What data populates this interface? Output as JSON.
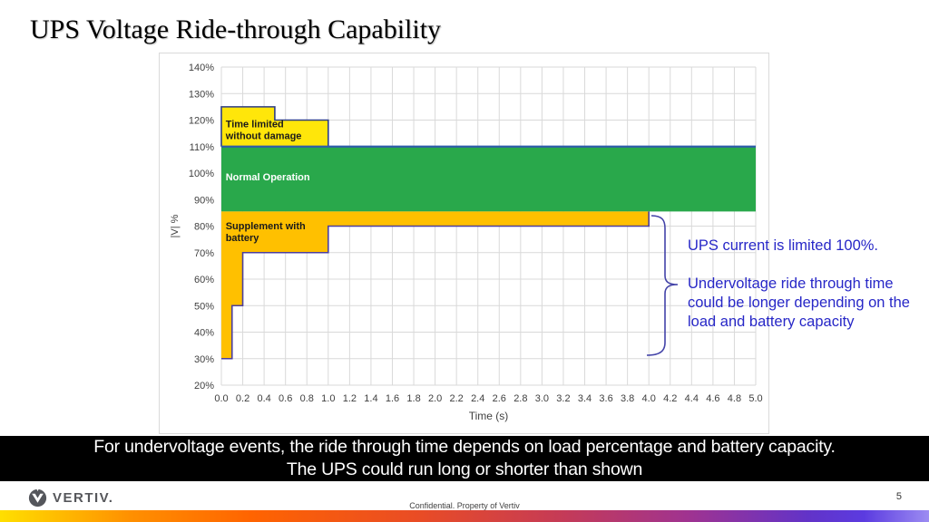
{
  "slide": {
    "title": "UPS Voltage Ride-through Capability",
    "page_number": "5",
    "footer_confidential": "Confidential. Property of Vertiv",
    "brand_name": "VERTIV.",
    "banner_line1": "For undervoltage events, the ride through time depends on load percentage and battery capacity.",
    "banner_line2": "The UPS could run long or shorter than shown"
  },
  "annotation": {
    "para1": "UPS current is limited 100%.",
    "para2": "Undervoltage ride through time\ncould be longer depending on the\nload and battery capacity",
    "color": "#2727c7"
  },
  "colors": {
    "green_region": "#29a84b",
    "yellow_region": "#ffe60a",
    "amber_region": "#ffc000",
    "overvoltage_outline": "#2e3e85",
    "line_110": "#2e5da8",
    "undervoltage_line": "#4c3f9c",
    "grid": "#d9d9d9",
    "tick_text": "#3f3f3f",
    "brace": "#4343a8",
    "banner_bg": "#000000",
    "brand_gray": "#54565b"
  },
  "chart_data": {
    "type": "area",
    "title": "",
    "xlabel": "Time (s)",
    "ylabel": "|V| %",
    "xlim": [
      0,
      5
    ],
    "ylim": [
      20,
      140
    ],
    "grid": true,
    "x_tick_values": [
      0,
      0.2,
      0.4,
      0.6,
      0.8,
      1.0,
      1.2,
      1.4,
      1.6,
      1.8,
      2.0,
      2.2,
      2.4,
      2.6,
      2.8,
      3.0,
      3.2,
      3.4,
      3.6,
      3.8,
      4.0,
      4.2,
      4.4,
      4.6,
      4.8,
      5.0
    ],
    "x_tick_labels": [
      "0.0",
      "0.2",
      "0.4",
      "0.6",
      "0.8",
      "1.0",
      "1.2",
      "1.4",
      "1.6",
      "1.8",
      "2.0",
      "2.2",
      "2.4",
      "2.6",
      "2.8",
      "3.0",
      "3.2",
      "3.4",
      "3.6",
      "3.8",
      "4.0",
      "4.2",
      "4.4",
      "4.6",
      "4.8",
      "5.0"
    ],
    "y_tick_values": [
      140,
      130,
      120,
      110,
      100,
      90,
      80,
      70,
      60,
      50,
      40,
      30,
      20
    ],
    "y_tick_labels": [
      "140%",
      "130%",
      "120%",
      "110%",
      "100%",
      "90%",
      "80%",
      "70%",
      "60%",
      "50%",
      "40%",
      "30%",
      "20%"
    ],
    "regions": [
      {
        "name": "time-limited-without-damage",
        "label": "Time limited without damage",
        "fill": "#ffe60a",
        "points": [
          [
            0,
            125
          ],
          [
            0.5,
            125
          ],
          [
            0.5,
            120
          ],
          [
            1,
            120
          ],
          [
            1,
            110
          ],
          [
            0,
            110
          ]
        ]
      },
      {
        "name": "normal-operation",
        "label": "Normal Operation",
        "fill": "#29a84b",
        "points": [
          [
            0,
            110
          ],
          [
            5,
            110
          ],
          [
            5,
            85.5
          ],
          [
            0,
            85.5
          ]
        ]
      },
      {
        "name": "supplement-with-battery",
        "label": "Supplement with battery",
        "fill": "#ffc000",
        "points": [
          [
            0,
            85.5
          ],
          [
            4,
            85.5
          ],
          [
            4,
            80
          ],
          [
            1,
            80
          ],
          [
            1,
            70
          ],
          [
            0.2,
            70
          ],
          [
            0.2,
            50
          ],
          [
            0.1,
            50
          ],
          [
            0.1,
            30
          ],
          [
            0,
            30
          ]
        ]
      }
    ],
    "boundary_lines": [
      {
        "name": "overvoltage-limit-line",
        "color": "#2e3e85",
        "width": 1.6,
        "points": [
          [
            0,
            110
          ],
          [
            0,
            125
          ],
          [
            0.5,
            125
          ],
          [
            0.5,
            120
          ],
          [
            1,
            120
          ],
          [
            1,
            110
          ]
        ]
      },
      {
        "name": "line-110pct",
        "color": "#2e5da8",
        "width": 2.2,
        "points": [
          [
            0,
            110
          ],
          [
            5,
            110
          ]
        ]
      },
      {
        "name": "undervoltage-limit-line",
        "color": "#4c3f9c",
        "width": 1.6,
        "points": [
          [
            0,
            30
          ],
          [
            0.1,
            30
          ],
          [
            0.1,
            50
          ],
          [
            0.2,
            50
          ],
          [
            0.2,
            70
          ],
          [
            1,
            70
          ],
          [
            1,
            80
          ],
          [
            4,
            80
          ],
          [
            4,
            85.5
          ]
        ]
      }
    ],
    "region_labels": [
      {
        "lines": [
          "Time limited",
          "without damage"
        ],
        "t": 0.04,
        "v": 118.6,
        "color": "#1b1b1b"
      },
      {
        "lines": [
          "Normal Operation"
        ],
        "t": 0.04,
        "v": 98.6,
        "color": "#ffffff"
      },
      {
        "lines": [
          "Supplement with",
          "battery"
        ],
        "t": 0.04,
        "v": 80.2,
        "color": "#1b1b1b"
      }
    ]
  }
}
